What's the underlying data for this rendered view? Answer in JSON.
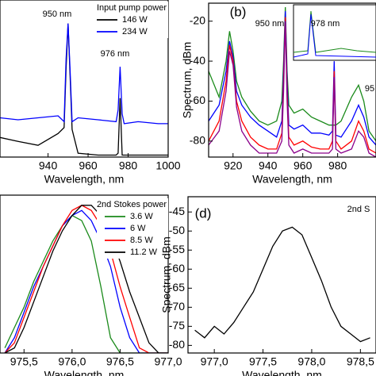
{
  "chart_data": [
    {
      "type": "line",
      "xlabel": "Wavelength, nm",
      "legend_title": "Input pump power",
      "legend": "upper right",
      "annotations": [
        "950 nm",
        "976 nm"
      ],
      "xlim": [
        916,
        1000
      ],
      "ylim": [
        -90,
        -10
      ],
      "xticks": [
        940,
        960,
        980,
        1000
      ],
      "x": [
        916,
        925,
        935,
        945,
        948,
        949,
        950,
        951,
        952,
        955,
        965,
        974,
        975,
        976,
        977,
        978,
        985,
        995,
        1000
      ],
      "series": [
        {
          "name": "146 W",
          "color": "#000000",
          "values": [
            -80,
            -82,
            -84,
            -78,
            -75,
            -45,
            -22,
            -48,
            -76,
            -88,
            -89,
            -89,
            -88,
            -60,
            -89,
            -89,
            -89,
            -89,
            -89
          ]
        },
        {
          "name": "234 W",
          "color": "#0000ff",
          "values": [
            -70,
            -71,
            -70,
            -69,
            -72,
            -40,
            -22,
            -45,
            -72,
            -70,
            -71,
            -72,
            -66,
            -44,
            -68,
            -73,
            -72,
            -73,
            -73
          ]
        }
      ]
    },
    {
      "type": "line",
      "panel_label": "(b)",
      "xlabel": "Wavelength, nm",
      "ylabel": "Spectrum, dBm",
      "annotations": [
        "950 nm",
        "978 nm",
        "95"
      ],
      "xlim": [
        906,
        1002
      ],
      "ylim": [
        -88,
        -11
      ],
      "xticks": [
        920,
        940,
        960,
        980
      ],
      "yticks": [
        -20,
        -40,
        -60,
        -80
      ],
      "x": [
        906,
        912,
        916,
        918,
        920,
        922,
        925,
        930,
        935,
        940,
        945,
        948,
        949,
        950,
        951,
        952,
        955,
        960,
        965,
        970,
        975,
        977,
        978,
        979,
        982,
        988,
        992,
        995,
        998,
        1002
      ],
      "series": [
        {
          "color": "#1a8a1a",
          "values": [
            -45,
            -58,
            -40,
            -25,
            -35,
            -50,
            -58,
            -65,
            -70,
            -72,
            -70,
            -60,
            -40,
            -13,
            -45,
            -62,
            -66,
            -64,
            -68,
            -70,
            -72,
            -72,
            -72,
            -72,
            -70,
            -58,
            -52,
            -60,
            -75,
            -80
          ]
        },
        {
          "color": "#0000ff",
          "values": [
            -70,
            -62,
            -45,
            -30,
            -38,
            -55,
            -62,
            -68,
            -72,
            -75,
            -78,
            -70,
            -45,
            -15,
            -50,
            -72,
            -74,
            -72,
            -76,
            -76,
            -77,
            -75,
            -40,
            -77,
            -78,
            -70,
            -62,
            -68,
            -78,
            -82
          ]
        },
        {
          "color": "#ff0000",
          "values": [
            -80,
            -70,
            -50,
            -32,
            -40,
            -60,
            -70,
            -78,
            -82,
            -84,
            -84,
            -76,
            -50,
            -18,
            -55,
            -78,
            -82,
            -80,
            -83,
            -84,
            -84,
            -80,
            -45,
            -80,
            -84,
            -80,
            -70,
            -75,
            -84,
            -86
          ]
        },
        {
          "color": "#8b008b",
          "values": [
            -82,
            -75,
            -55,
            -35,
            -42,
            -63,
            -75,
            -82,
            -86,
            -86,
            -86,
            -80,
            -55,
            -20,
            -60,
            -82,
            -86,
            -84,
            -86,
            -86,
            -86,
            -84,
            -48,
            -84,
            -86,
            -84,
            -75,
            -78,
            -86,
            -88
          ]
        }
      ]
    },
    {
      "type": "line",
      "xlabel": "Wavelength, nm",
      "legend_title": "2nd Stokes power",
      "legend": "upper right",
      "xlim": [
        975.25,
        977.0
      ],
      "ylim": [
        -75,
        -44
      ],
      "xticks": [
        {
          "value": 975.5,
          "label": "975,5"
        },
        {
          "value": 976.0,
          "label": "976,0"
        },
        {
          "value": 976.5,
          "label": "976,5"
        },
        {
          "value": 977.0,
          "label": "977,0"
        }
      ],
      "x": [
        975.3,
        975.4,
        975.5,
        975.6,
        975.7,
        975.8,
        975.9,
        976.0,
        976.1,
        976.2,
        976.3,
        976.4,
        976.5,
        976.6,
        976.7,
        976.8,
        976.9,
        977.0
      ],
      "series": [
        {
          "name": "3.6 W",
          "color": "#1a8a1a",
          "values": [
            -74,
            -70,
            -66,
            -61,
            -57,
            -53,
            -50,
            -48,
            -49,
            -53,
            -62,
            -72,
            -75,
            -75,
            -75,
            -75,
            -75,
            -75
          ]
        },
        {
          "name": "6 W",
          "color": "#0000ff",
          "values": [
            -75,
            -72,
            -67,
            -62,
            -58,
            -54,
            -50,
            -48,
            -47,
            -49,
            -53,
            -58,
            -66,
            -72,
            -75,
            -75,
            -75,
            -75
          ]
        },
        {
          "name": "8.5 W",
          "color": "#ff0000",
          "values": [
            -75,
            -73,
            -68,
            -63,
            -58,
            -54,
            -50,
            -47,
            -46,
            -47,
            -50,
            -55,
            -62,
            -68,
            -74,
            -75,
            -75,
            -75
          ]
        },
        {
          "name": "11.2 W",
          "color": "#000000",
          "values": [
            -75,
            -74,
            -70,
            -65,
            -60,
            -55,
            -51,
            -48,
            -46,
            -46,
            -48,
            -52,
            -57,
            -63,
            -68,
            -73,
            -75,
            -75
          ]
        }
      ]
    },
    {
      "type": "line",
      "panel_label": "(d)",
      "xlabel": "Wavelength, nm",
      "ylabel": "Spectrum, dBm",
      "annotations": [
        "2nd S"
      ],
      "xlim": [
        976.73,
        978.66
      ],
      "ylim": [
        -82,
        -41
      ],
      "xticks": [
        {
          "value": 977.0,
          "label": "977,0"
        },
        {
          "value": 977.5,
          "label": "977,5"
        },
        {
          "value": 978.0,
          "label": "978,0"
        },
        {
          "value": 978.5,
          "label": "978,5"
        }
      ],
      "yticks": [
        -45,
        -50,
        -55,
        -60,
        -65,
        -70,
        -75,
        -80
      ],
      "x": [
        976.8,
        976.9,
        977.0,
        977.1,
        977.2,
        977.3,
        977.4,
        977.5,
        977.6,
        977.7,
        977.8,
        977.9,
        978.0,
        978.1,
        978.2,
        978.3,
        978.4,
        978.5,
        978.6
      ],
      "series": [
        {
          "color": "#000000",
          "values": [
            -76,
            -78,
            -75,
            -77,
            -74,
            -70,
            -66,
            -60,
            -54,
            -50,
            -49,
            -51,
            -57,
            -63,
            -70,
            -75,
            -77,
            -79,
            -78
          ]
        }
      ]
    }
  ]
}
